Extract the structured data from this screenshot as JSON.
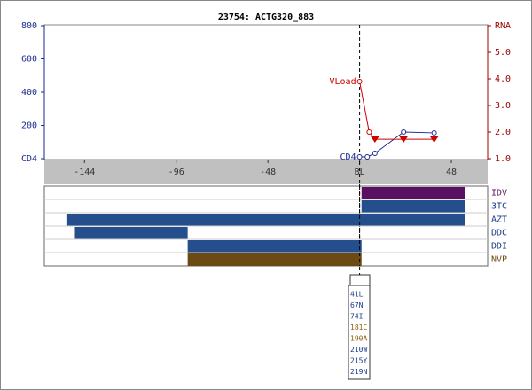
{
  "chart_data": [
    {
      "type": "line",
      "title": "23754: ACTG320_883",
      "xlim": [
        -165,
        67
      ],
      "xticks": [
        -144,
        -96,
        -48,
        {
          "value": 0,
          "label": "BL"
        },
        48
      ],
      "ylim": [
        0,
        800
      ],
      "yticks": [
        {
          "value": 0,
          "label": "CD4"
        },
        200,
        400,
        600,
        800
      ],
      "y2lim": [
        1,
        6
      ],
      "y2ticks": [
        {
          "value": 1,
          "label": "1.0"
        },
        {
          "value": 2,
          "label": "2.0"
        },
        {
          "value": 3,
          "label": "3.0"
        },
        {
          "value": 4,
          "label": "4.0"
        },
        {
          "value": 5,
          "label": "5.0"
        },
        {
          "value": 6,
          "label": "RNA"
        }
      ],
      "series": [
        {
          "name": "CD4",
          "color": "#1a2a8c",
          "x": [
            0,
            4,
            8,
            23,
            39
          ],
          "values": [
            11,
            11,
            32,
            160,
            155
          ],
          "markers": [
            "circle",
            "circle",
            "circle",
            "circle",
            "circle"
          ]
        },
        {
          "name": "VLoad",
          "color": "#cc0000",
          "axis": "y2",
          "x": [
            0,
            5,
            8,
            23,
            39
          ],
          "values": [
            3.9,
            2.0,
            1.73,
            1.73,
            1.73
          ],
          "markers": [
            "circle",
            "circle",
            "triangle",
            "triangle",
            "triangle"
          ]
        }
      ]
    },
    {
      "type": "gantt",
      "categories": [
        "IDV",
        "3TC",
        "AZT",
        "DDC",
        "DDI",
        "NVP"
      ],
      "colors": [
        "#5a1060",
        "#244f8c",
        "#244f8c",
        "#244f8c",
        "#244f8c",
        "#6b4a14"
      ],
      "label_colors": [
        "#5a1060",
        "#1a3a8c",
        "#1a3a8c",
        "#1a3a8c",
        "#1a3a8c",
        "#6b4a14"
      ],
      "starts": [
        1,
        1,
        -153,
        -149,
        -90,
        -90
      ],
      "ends": [
        55,
        55,
        55,
        -90,
        1,
        1
      ]
    }
  ],
  "mutations": [
    {
      "label": "41L",
      "color": "#1a3a8c"
    },
    {
      "label": "67N",
      "color": "#1a3a8c"
    },
    {
      "label": "74I",
      "color": "#1a3a8c"
    },
    {
      "label": "181C",
      "color": "#8c5a10"
    },
    {
      "label": "190A",
      "color": "#8c5a10"
    },
    {
      "label": "210W",
      "color": "#1a3a8c"
    },
    {
      "label": "215Y",
      "color": "#1a3a8c"
    },
    {
      "label": "219N",
      "color": "#1a3a8c"
    }
  ]
}
